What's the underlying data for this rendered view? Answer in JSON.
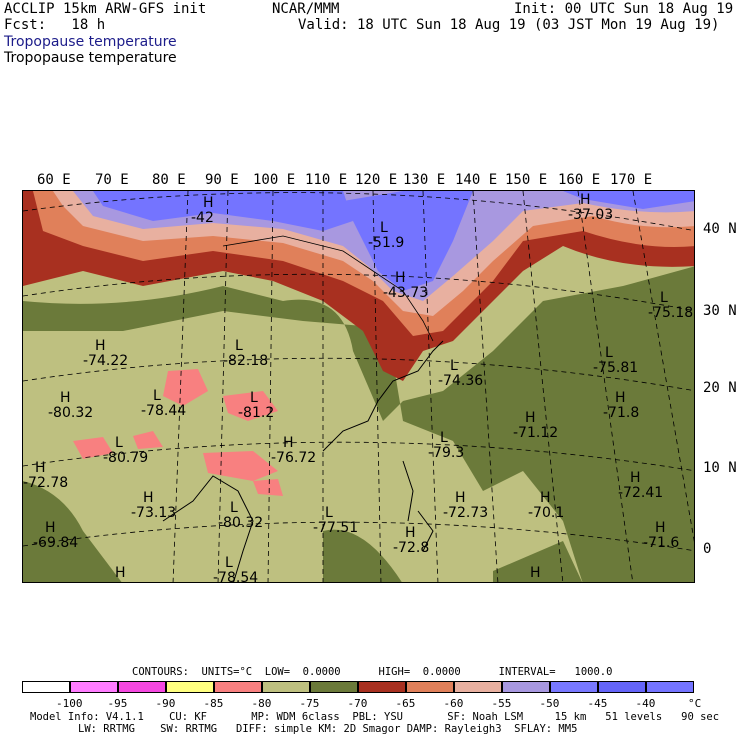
{
  "header": {
    "line1_left": "ACCLIP 15km ARW-GFS init",
    "line1_center": "NCAR/MMM",
    "line1_right": "Init: 00 UTC Sun 18 Aug 19",
    "line2_left": "Fcst:   18 h",
    "line2_right": "Valid: 18 UTC Sun 18 Aug 19 (03 JST Mon 19 Aug 19)",
    "field1": "Tropopause temperature",
    "field2": "Tropopause temperature"
  },
  "lon_labels": [
    "60 E",
    "70 E",
    "80 E",
    "90 E",
    "100 E",
    "110 E",
    "120 E",
    "130 E",
    "140 E",
    "150 E",
    "160 E",
    "170 E"
  ],
  "lat_labels": [
    "40 N",
    "30 N",
    "20 N",
    "10 N",
    "0"
  ],
  "extrema": [
    {
      "type": "H",
      "value": "-42"
    },
    {
      "type": "L",
      "value": "-51.9"
    },
    {
      "type": "H",
      "value": "-37.03"
    },
    {
      "type": "H",
      "value": "-43.73"
    },
    {
      "type": "L",
      "value": "-75.18"
    },
    {
      "type": "H",
      "value": "-74.22"
    },
    {
      "type": "L",
      "value": "-82.18"
    },
    {
      "type": "L",
      "value": "-74.36"
    },
    {
      "type": "L",
      "value": "-75.81"
    },
    {
      "type": "H",
      "value": "-80.32"
    },
    {
      "type": "L",
      "value": "-78.44"
    },
    {
      "type": "L",
      "value": "-81.2"
    },
    {
      "type": "H",
      "value": "-71.8"
    },
    {
      "type": "H",
      "value": "-71.12"
    },
    {
      "type": "L",
      "value": "-80.79"
    },
    {
      "type": "L",
      "value": "-79.3"
    },
    {
      "type": "H",
      "value": "-76.72"
    },
    {
      "type": "H",
      "value": "-72.78"
    },
    {
      "type": "H",
      "value": "-72.41"
    },
    {
      "type": "H",
      "value": "-73.13"
    },
    {
      "type": "H",
      "value": "-72.73"
    },
    {
      "type": "H",
      "value": "-70.1"
    },
    {
      "type": "L",
      "value": "-80.32"
    },
    {
      "type": "L",
      "value": "-77.51"
    },
    {
      "type": "H",
      "value": "-69.84"
    },
    {
      "type": "H",
      "value": "-71.6"
    },
    {
      "type": "H",
      "value": "-72.8"
    },
    {
      "type": "L",
      "value": "-78.54"
    },
    {
      "type": "H",
      "value": ""
    },
    {
      "type": "H",
      "value": ""
    }
  ],
  "colorbar": {
    "contours_line": "CONTOURS:  UNITS=°C  LOW=  0.0000      HIGH=  0.0000      INTERVAL=   1000.0",
    "colors": [
      "#ffffff",
      "#ff7cff",
      "#f548e0",
      "#ffff80",
      "#f88080",
      "#bec080",
      "#6b7a3a",
      "#a83020",
      "#e0805a",
      "#e8b0a0",
      "#a898e0",
      "#7878ff",
      "#6464f8",
      "#7474ff"
    ],
    "labels": [
      "-100",
      "-95",
      "-90",
      "-85",
      "-80",
      "-75",
      "-70",
      "-65",
      "-60",
      "-55",
      "-50",
      "-45",
      "-40",
      "°C"
    ]
  },
  "footer": {
    "line1": "Model Info: V4.1.1    CU: KF       MP: WDM 6class  PBL: YSU       SF: Noah LSM     15 km   51 levels   90 sec",
    "line2": "LW: RRTMG    SW: RRTMG   DIFF: simple KM: 2D Smagor DAMP: Rayleigh3  SFLAY: MM5"
  }
}
